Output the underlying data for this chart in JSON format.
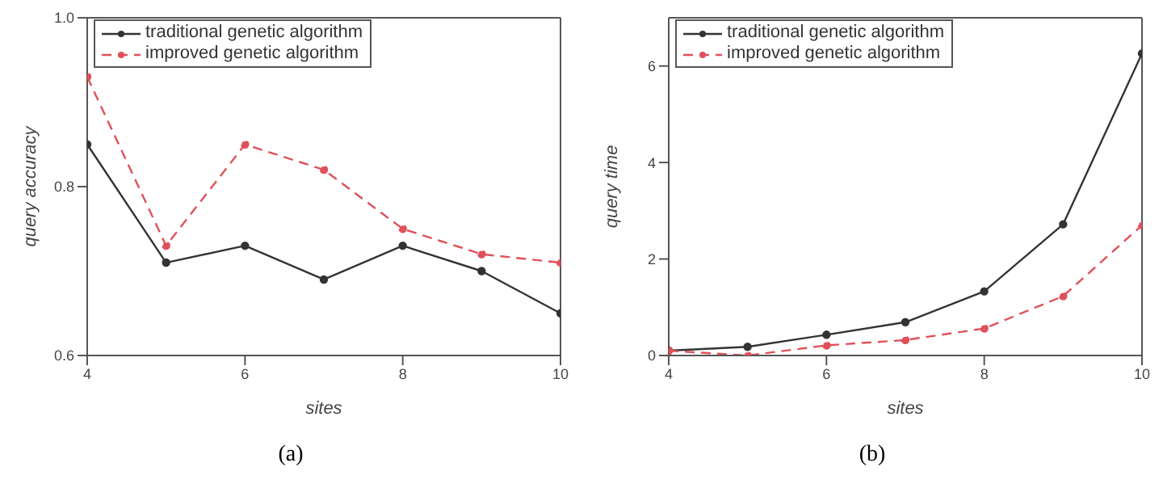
{
  "chart_data": [
    {
      "type": "line",
      "xlabel": "sites",
      "ylabel": "query accuracy",
      "annotations": [
        "(a)"
      ],
      "x": [
        4,
        5,
        6,
        7,
        8,
        9,
        10
      ],
      "xlim": [
        4,
        10
      ],
      "xticks": [
        4,
        6,
        8,
        10
      ],
      "ylim": [
        0.6,
        1.0
      ],
      "yticks": [
        0.6,
        0.8,
        {
          "value": 1.0,
          "label": "1.0"
        }
      ],
      "grid": false,
      "legend": "top left",
      "marker": "circle",
      "series": [
        {
          "name": "traditional genetic algorithm",
          "color": "#333333",
          "line_style": "solid",
          "values": [
            0.85,
            0.71,
            0.73,
            0.69,
            0.73,
            0.7,
            0.65
          ]
        },
        {
          "name": "improved genetic algorithm",
          "color": "#e0505a",
          "line_style": "dashed",
          "values": [
            0.93,
            0.73,
            0.85,
            0.82,
            0.75,
            0.72,
            0.71
          ]
        }
      ]
    },
    {
      "type": "line",
      "xlabel": "sites",
      "ylabel": "query time",
      "annotations": [
        "(b)"
      ],
      "x": [
        4,
        5,
        6,
        7,
        8,
        9,
        10
      ],
      "xlim": [
        4,
        10
      ],
      "xticks": [
        4,
        6,
        8,
        10
      ],
      "ylim": [
        0,
        7
      ],
      "yticks": [
        0,
        2,
        4,
        6
      ],
      "grid": false,
      "legend": "top left",
      "marker": "circle",
      "series": [
        {
          "name": "traditional genetic algorithm",
          "color": "#333333",
          "line_style": "solid",
          "values": [
            0.1,
            0.18,
            0.43,
            0.69,
            1.33,
            2.72,
            6.26
          ]
        },
        {
          "name": "improved genetic algorithm",
          "color": "#e0505a",
          "line_style": "dashed",
          "values": [
            0.1,
            0.0,
            0.21,
            0.32,
            0.56,
            1.23,
            2.7
          ]
        }
      ]
    }
  ]
}
